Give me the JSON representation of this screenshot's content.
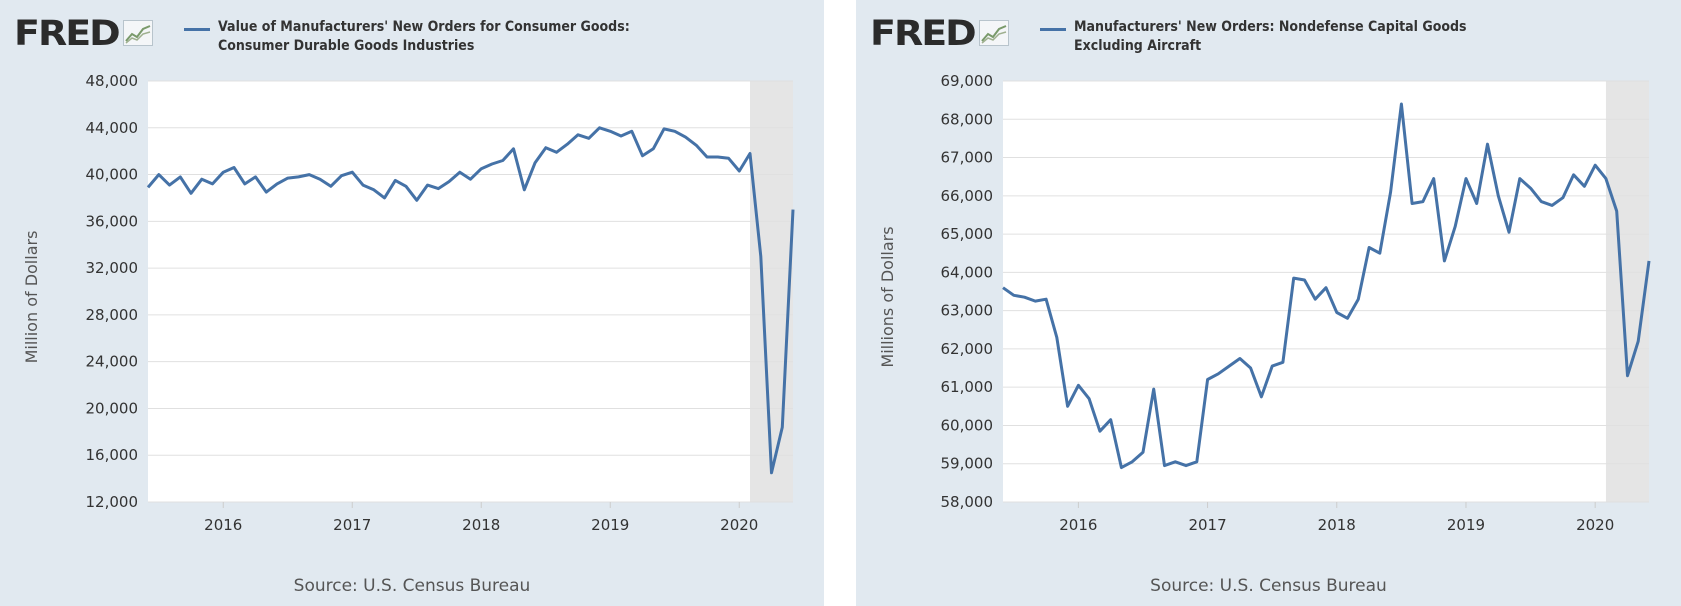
{
  "colors": {
    "panel_background": "#e1e9f0",
    "plot_background": "#ffffff",
    "series_line": "#4572a7",
    "recession_shade": "#e5e5e5",
    "gridline": "#e0e0e0"
  },
  "panels": [
    {
      "logo_text": "FRED",
      "logo_icon": "line-graph-icon",
      "legend_lines": [
        "Value of Manufacturers' New Orders for Consumer Goods:",
        "Consumer Durable Goods Industries"
      ],
      "source": "Source: U.S. Census Bureau"
    },
    {
      "logo_text": "FRED",
      "logo_icon": "line-graph-icon",
      "legend_lines": [
        "Manufacturers' New Orders: Nondefense Capital Goods",
        "Excluding Aircraft"
      ],
      "source": "Source: U.S. Census Bureau"
    }
  ],
  "chart_data": [
    {
      "type": "line",
      "title": "Value of Manufacturers' New Orders for Consumer Goods: Consumer Durable Goods Industries",
      "ylabel": "Million of Dollars",
      "xlabel": "",
      "ylim": [
        12000,
        48000
      ],
      "yticks": [
        12000,
        16000,
        20000,
        24000,
        28000,
        32000,
        36000,
        40000,
        44000,
        48000
      ],
      "ytick_labels": [
        "12,000",
        "16,000",
        "20,000",
        "24,000",
        "28,000",
        "32,000",
        "36,000",
        "40,000",
        "44,000",
        "48,000"
      ],
      "xlim": [
        "2015-06",
        "2020-06"
      ],
      "xticks": [
        "2016-01",
        "2017-01",
        "2018-01",
        "2019-01",
        "2020-01"
      ],
      "xtick_labels": [
        "2016",
        "2017",
        "2018",
        "2019",
        "2020"
      ],
      "recession": [
        "2020-02",
        "2020-06"
      ],
      "grid": true,
      "series": [
        {
          "x": [
            "2015-06",
            "2015-07",
            "2015-08",
            "2015-09",
            "2015-10",
            "2015-11",
            "2015-12",
            "2016-01",
            "2016-02",
            "2016-03",
            "2016-04",
            "2016-05",
            "2016-06",
            "2016-07",
            "2016-08",
            "2016-09",
            "2016-10",
            "2016-11",
            "2016-12",
            "2017-01",
            "2017-02",
            "2017-03",
            "2017-04",
            "2017-05",
            "2017-06",
            "2017-07",
            "2017-08",
            "2017-09",
            "2017-10",
            "2017-11",
            "2017-12",
            "2018-01",
            "2018-02",
            "2018-03",
            "2018-04",
            "2018-05",
            "2018-06",
            "2018-07",
            "2018-08",
            "2018-09",
            "2018-10",
            "2018-11",
            "2018-12",
            "2019-01",
            "2019-02",
            "2019-03",
            "2019-04",
            "2019-05",
            "2019-06",
            "2019-07",
            "2019-08",
            "2019-09",
            "2019-10",
            "2019-11",
            "2019-12",
            "2020-01",
            "2020-02",
            "2020-03",
            "2020-04",
            "2020-05",
            "2020-06"
          ],
          "values": [
            38900,
            40000,
            39100,
            39800,
            38400,
            39600,
            39200,
            40200,
            40600,
            39200,
            39800,
            38500,
            39200,
            39700,
            39800,
            40000,
            39600,
            39000,
            39900,
            40200,
            39100,
            38700,
            38000,
            39500,
            39000,
            37800,
            39100,
            38800,
            39400,
            40200,
            39600,
            40500,
            40900,
            41200,
            42200,
            38700,
            41000,
            42300,
            41900,
            42600,
            43400,
            43100,
            44000,
            43700,
            43300,
            43700,
            41600,
            42200,
            43900,
            43700,
            43200,
            42500,
            41500,
            41500,
            41400,
            40300,
            41800,
            33000,
            14500,
            18400,
            37000
          ]
        }
      ]
    },
    {
      "type": "line",
      "title": "Manufacturers' New Orders: Nondefense Capital Goods Excluding Aircraft",
      "ylabel": "Millions of Dollars",
      "xlabel": "",
      "ylim": [
        58000,
        69000
      ],
      "yticks": [
        58000,
        59000,
        60000,
        61000,
        62000,
        63000,
        64000,
        65000,
        66000,
        67000,
        68000,
        69000
      ],
      "ytick_labels": [
        "58,000",
        "59,000",
        "60,000",
        "61,000",
        "62,000",
        "63,000",
        "64,000",
        "65,000",
        "66,000",
        "67,000",
        "68,000",
        "69,000"
      ],
      "xlim": [
        "2015-06",
        "2020-06"
      ],
      "xticks": [
        "2016-01",
        "2017-01",
        "2018-01",
        "2019-01",
        "2020-01"
      ],
      "xtick_labels": [
        "2016",
        "2017",
        "2018",
        "2019",
        "2020"
      ],
      "recession": [
        "2020-02",
        "2020-06"
      ],
      "grid": true,
      "series": [
        {
          "x": [
            "2015-06",
            "2015-07",
            "2015-08",
            "2015-09",
            "2015-10",
            "2015-11",
            "2015-12",
            "2016-01",
            "2016-02",
            "2016-03",
            "2016-04",
            "2016-05",
            "2016-06",
            "2016-07",
            "2016-08",
            "2016-09",
            "2016-10",
            "2016-11",
            "2016-12",
            "2017-01",
            "2017-02",
            "2017-03",
            "2017-04",
            "2017-05",
            "2017-06",
            "2017-07",
            "2017-08",
            "2017-09",
            "2017-10",
            "2017-11",
            "2017-12",
            "2018-01",
            "2018-02",
            "2018-03",
            "2018-04",
            "2018-05",
            "2018-06",
            "2018-07",
            "2018-08",
            "2018-09",
            "2018-10",
            "2018-11",
            "2018-12",
            "2019-01",
            "2019-02",
            "2019-03",
            "2019-04",
            "2019-05",
            "2019-06",
            "2019-07",
            "2019-08",
            "2019-09",
            "2019-10",
            "2019-11",
            "2019-12",
            "2020-01",
            "2020-02",
            "2020-03",
            "2020-04",
            "2020-05",
            "2020-06"
          ],
          "values": [
            63600,
            63400,
            63350,
            63250,
            63300,
            62300,
            60500,
            61050,
            60700,
            59850,
            60150,
            58900,
            59050,
            59300,
            60950,
            58950,
            59050,
            58950,
            59050,
            61200,
            61350,
            61550,
            61750,
            61500,
            60750,
            61550,
            61650,
            63850,
            63800,
            63300,
            63600,
            62950,
            62800,
            63300,
            64650,
            64500,
            66100,
            68400,
            65800,
            65850,
            66450,
            64300,
            65200,
            66450,
            65800,
            67350,
            66000,
            65050,
            66450,
            66200,
            65850,
            65750,
            65950,
            66550,
            66250,
            66800,
            66450,
            65600,
            61300,
            62200,
            64300
          ]
        }
      ]
    }
  ]
}
